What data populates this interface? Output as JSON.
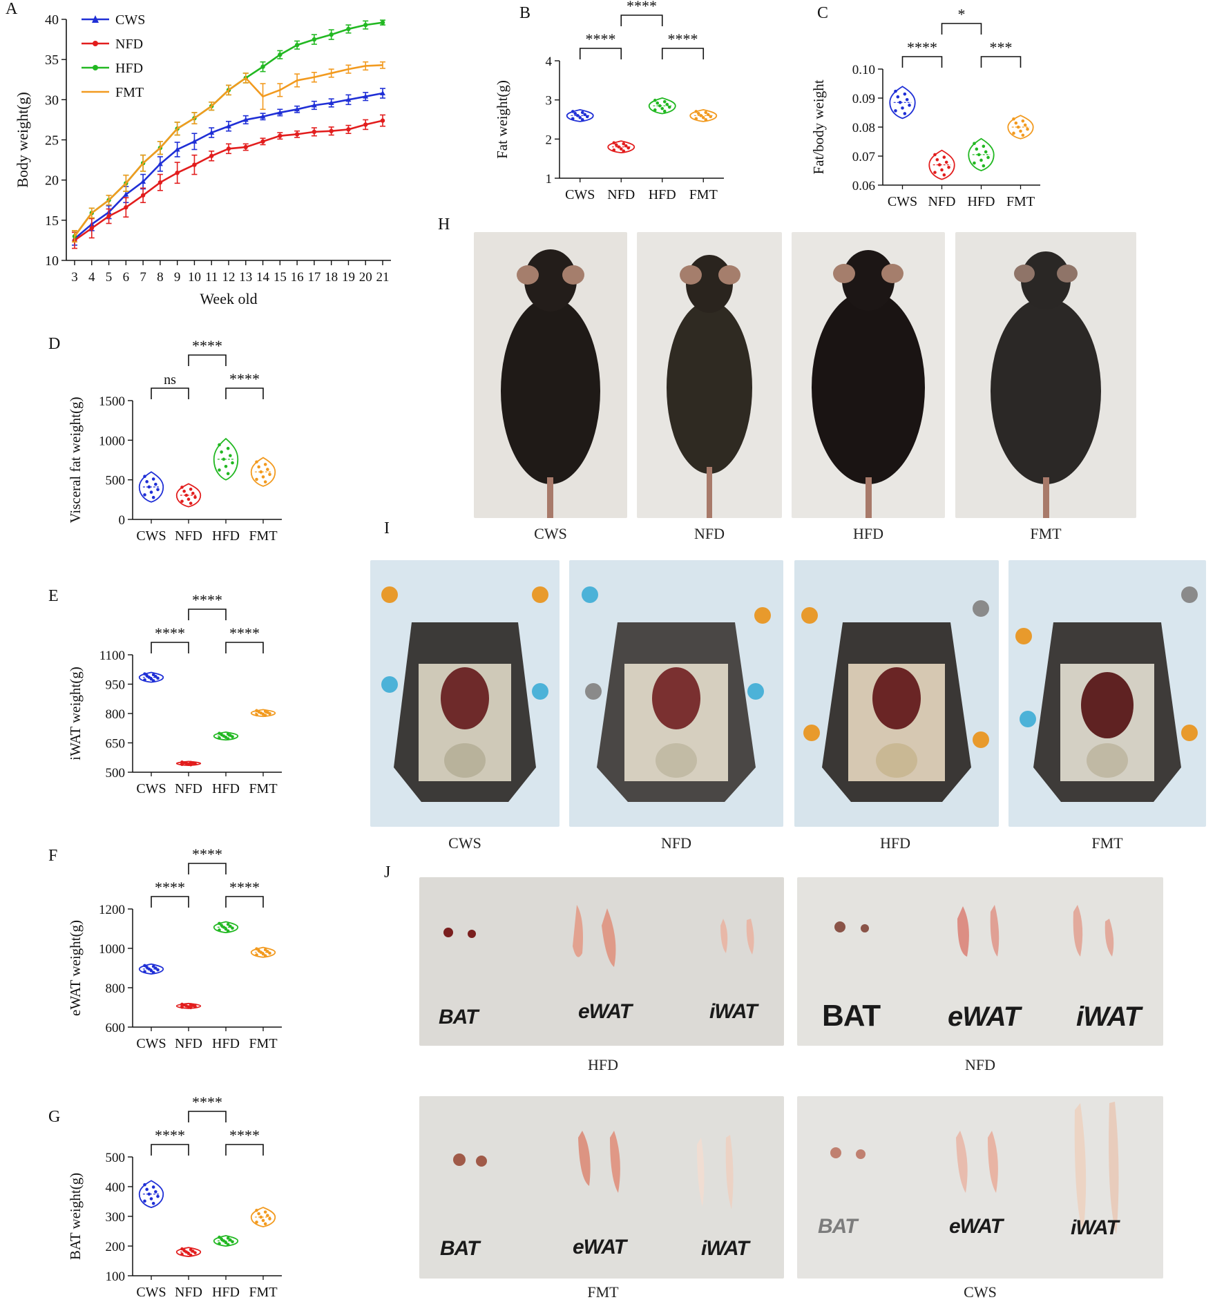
{
  "panel_labels": {
    "A": "A",
    "B": "B",
    "C": "C",
    "D": "D",
    "E": "E",
    "F": "F",
    "G": "G",
    "H": "H",
    "I": "I",
    "J": "J"
  },
  "colors": {
    "CWS": "#1f2fd6",
    "NFD": "#e21d1d",
    "HFD": "#22b822",
    "FMT": "#f29a1f"
  },
  "chart_data": [
    {
      "id": "A",
      "type": "line",
      "title": "",
      "xlabel": "Week old",
      "ylabel": "Body weight(g)",
      "x": [
        3,
        4,
        5,
        6,
        7,
        8,
        9,
        10,
        11,
        12,
        13,
        14,
        15,
        16,
        17,
        18,
        19,
        20,
        21
      ],
      "x_tick_labels": [
        "3",
        "4",
        "5",
        "6",
        "7",
        "8",
        "9",
        "10",
        "11",
        "12",
        "13",
        "14",
        "15",
        "16",
        "17",
        "18",
        "19",
        "20",
        "21"
      ],
      "ylim": [
        10,
        40
      ],
      "yticks": [
        10,
        15,
        20,
        25,
        30,
        35,
        40
      ],
      "legend_position": "top-left",
      "series": [
        {
          "name": "CWS",
          "marker": "triangle",
          "values": [
            12.7,
            14.5,
            16.0,
            18.2,
            19.8,
            22.0,
            23.8,
            24.8,
            25.9,
            26.7,
            27.5,
            27.9,
            28.4,
            28.8,
            29.3,
            29.6,
            30.0,
            30.4,
            30.8
          ],
          "errors": [
            0.8,
            0.8,
            0.8,
            1.0,
            0.9,
            0.9,
            0.9,
            1.0,
            0.6,
            0.6,
            0.5,
            0.4,
            0.4,
            0.4,
            0.5,
            0.5,
            0.6,
            0.5,
            0.6
          ]
        },
        {
          "name": "NFD",
          "marker": "circle",
          "values": [
            12.5,
            14.0,
            15.5,
            16.6,
            18.1,
            19.7,
            20.9,
            21.9,
            23.0,
            23.9,
            24.1,
            24.8,
            25.5,
            25.7,
            26.0,
            26.1,
            26.3,
            26.9,
            27.4
          ],
          "errors": [
            1.0,
            1.2,
            0.9,
            1.2,
            0.9,
            1.0,
            1.3,
            1.2,
            0.6,
            0.6,
            0.4,
            0.4,
            0.4,
            0.4,
            0.5,
            0.5,
            0.5,
            0.6,
            0.7
          ]
        },
        {
          "name": "HFD",
          "marker": "circle",
          "values": [
            13.0,
            15.9,
            17.5,
            19.6,
            22.1,
            24.0,
            26.4,
            27.7,
            29.2,
            31.2,
            32.7,
            34.1,
            35.6,
            36.8,
            37.5,
            38.1,
            38.8,
            39.3,
            39.6
          ],
          "errors": [
            0.7,
            0.6,
            0.6,
            1.0,
            1.0,
            0.8,
            0.8,
            0.7,
            0.5,
            0.6,
            0.6,
            0.6,
            0.5,
            0.5,
            0.6,
            0.6,
            0.5,
            0.5,
            0.3
          ]
        },
        {
          "name": "FMT",
          "marker": "dash",
          "values": [
            13.0,
            15.9,
            17.5,
            19.6,
            22.1,
            24.0,
            26.4,
            27.7,
            29.2,
            31.2,
            32.7,
            30.4,
            31.2,
            32.4,
            32.8,
            33.3,
            33.8,
            34.2,
            34.3
          ],
          "errors": [
            0.7,
            0.6,
            0.6,
            1.0,
            1.0,
            0.8,
            0.8,
            0.7,
            0.5,
            0.6,
            0.6,
            1.6,
            0.8,
            0.8,
            0.6,
            0.5,
            0.5,
            0.5,
            0.4
          ]
        }
      ]
    },
    {
      "id": "B",
      "type": "violin",
      "ylabel": "Fat weight(g)",
      "ylim": [
        1,
        4
      ],
      "yticks": [
        1,
        2,
        3,
        4
      ],
      "categories": [
        "CWS",
        "NFD",
        "HFD",
        "FMT"
      ],
      "values": [
        [
          2.45,
          2.75
        ],
        [
          1.65,
          1.95
        ],
        [
          2.65,
          3.05
        ],
        [
          2.45,
          2.75
        ]
      ],
      "brackets": [
        {
          "from": 0,
          "to": 1,
          "label": "****",
          "level": 0
        },
        {
          "from": 2,
          "to": 3,
          "label": "****",
          "level": 0
        },
        {
          "from": 1,
          "to": 2,
          "label": "****",
          "level": 1
        }
      ]
    },
    {
      "id": "C",
      "type": "violin",
      "ylabel": "Fat/body weight",
      "ylim": [
        0.06,
        0.1
      ],
      "yticks": [
        0.06,
        0.07,
        0.08,
        0.09,
        0.1
      ],
      "ytick_labels": [
        "0.06",
        "0.07",
        "0.08",
        "0.09",
        "0.10"
      ],
      "categories": [
        "CWS",
        "NFD",
        "HFD",
        "FMT"
      ],
      "values": [
        [
          0.083,
          0.094
        ],
        [
          0.062,
          0.072
        ],
        [
          0.065,
          0.076
        ],
        [
          0.076,
          0.084
        ]
      ],
      "brackets": [
        {
          "from": 0,
          "to": 1,
          "label": "****",
          "level": 0
        },
        {
          "from": 2,
          "to": 3,
          "label": "***",
          "level": 0
        },
        {
          "from": 1,
          "to": 2,
          "label": "*",
          "level": 1
        }
      ]
    },
    {
      "id": "D",
      "type": "violin",
      "ylabel": "Visceral fat weight(g)",
      "ylim": [
        0,
        1500
      ],
      "yticks": [
        0,
        500,
        1000,
        1500
      ],
      "categories": [
        "CWS",
        "NFD",
        "HFD",
        "FMT"
      ],
      "values": [
        [
          220,
          600
        ],
        [
          160,
          450
        ],
        [
          500,
          1020
        ],
        [
          420,
          780
        ]
      ],
      "brackets": [
        {
          "from": 0,
          "to": 1,
          "label": "ns",
          "level": 0
        },
        {
          "from": 2,
          "to": 3,
          "label": "****",
          "level": 0
        },
        {
          "from": 1,
          "to": 2,
          "label": "****",
          "level": 1
        }
      ]
    },
    {
      "id": "E",
      "type": "violin",
      "ylabel": "iWAT weight(g)",
      "ylim": [
        500,
        1100
      ],
      "yticks": [
        500,
        650,
        800,
        950,
        1100
      ],
      "categories": [
        "CWS",
        "NFD",
        "HFD",
        "FMT"
      ],
      "values": [
        [
          960,
          1010
        ],
        [
          535,
          555
        ],
        [
          665,
          705
        ],
        [
          785,
          820
        ]
      ],
      "brackets": [
        {
          "from": 0,
          "to": 1,
          "label": "****",
          "level": 0
        },
        {
          "from": 2,
          "to": 3,
          "label": "****",
          "level": 0
        },
        {
          "from": 1,
          "to": 2,
          "label": "****",
          "level": 1
        }
      ]
    },
    {
      "id": "F",
      "type": "violin",
      "ylabel": "eWAT weight(g)",
      "ylim": [
        600,
        1200
      ],
      "yticks": [
        600,
        800,
        1000,
        1200
      ],
      "categories": [
        "CWS",
        "NFD",
        "HFD",
        "FMT"
      ],
      "values": [
        [
          870,
          920
        ],
        [
          695,
          720
        ],
        [
          1080,
          1135
        ],
        [
          955,
          1005
        ]
      ],
      "brackets": [
        {
          "from": 0,
          "to": 1,
          "label": "****",
          "level": 0
        },
        {
          "from": 2,
          "to": 3,
          "label": "****",
          "level": 0
        },
        {
          "from": 1,
          "to": 2,
          "label": "****",
          "level": 1
        }
      ]
    },
    {
      "id": "G",
      "type": "violin",
      "ylabel": "BAT weight(g)",
      "ylim": [
        100,
        500
      ],
      "yticks": [
        100,
        200,
        300,
        400,
        500
      ],
      "categories": [
        "CWS",
        "NFD",
        "HFD",
        "FMT"
      ],
      "values": [
        [
          330,
          420
        ],
        [
          165,
          195
        ],
        [
          200,
          235
        ],
        [
          265,
          330
        ]
      ],
      "brackets": [
        {
          "from": 0,
          "to": 1,
          "label": "****",
          "level": 0
        },
        {
          "from": 2,
          "to": 3,
          "label": "****",
          "level": 0
        },
        {
          "from": 1,
          "to": 2,
          "label": "****",
          "level": 1
        }
      ]
    }
  ],
  "photos": {
    "H": {
      "captions": [
        "CWS",
        "NFD",
        "HFD",
        "FMT"
      ]
    },
    "I": {
      "captions": [
        "CWS",
        "NFD",
        "HFD",
        "FMT"
      ]
    },
    "J": {
      "captions": [
        "HFD",
        "NFD",
        "FMT",
        "CWS"
      ],
      "tissue_labels": {
        "bat": "BAT",
        "ewat": "eWAT",
        "iwat": "iWAT"
      }
    }
  }
}
